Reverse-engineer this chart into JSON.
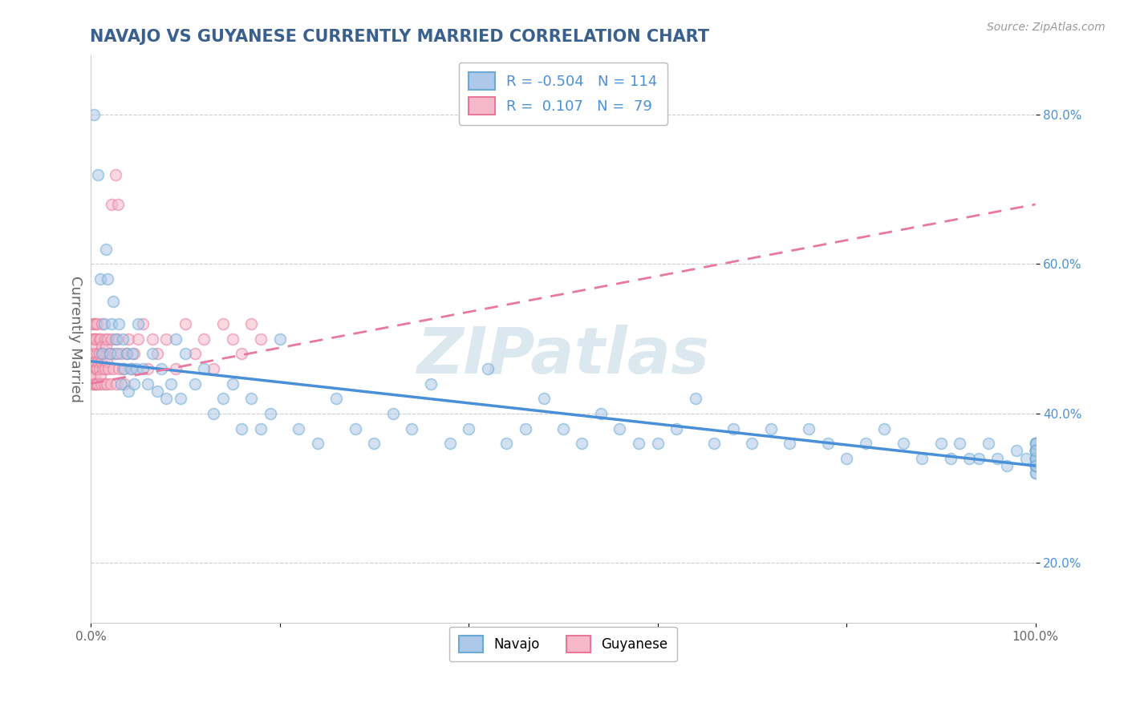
{
  "title": "NAVAJO VS GUYANESE CURRENTLY MARRIED CORRELATION CHART",
  "source_text": "Source: ZipAtlas.com",
  "ylabel": "Currently Married",
  "navajo_R": -0.504,
  "navajo_N": 114,
  "guyanese_R": 0.107,
  "guyanese_N": 79,
  "xlim": [
    0.0,
    1.0
  ],
  "ylim": [
    0.12,
    0.88
  ],
  "x_ticks": [
    0.0,
    0.2,
    0.4,
    0.6,
    0.8,
    1.0
  ],
  "x_tick_labels": [
    "0.0%",
    "",
    "",
    "",
    "",
    "100.0%"
  ],
  "y_ticks": [
    0.2,
    0.4,
    0.6,
    0.8
  ],
  "y_tick_labels": [
    "20.0%",
    "40.0%",
    "60.0%",
    "80.0%"
  ],
  "navajo_color": "#adc8e8",
  "guyanese_color": "#f5b8cb",
  "navajo_edge_color": "#6aaad4",
  "guyanese_edge_color": "#e8789a",
  "navajo_line_color": "#4a90d9",
  "guyanese_line_color": "#e878a0",
  "background_color": "#ffffff",
  "grid_color": "#cccccc",
  "title_color": "#3a6090",
  "source_color": "#999999",
  "legend_top_border": "#bbbbbb",
  "watermark_text": "ZIPatlas",
  "watermark_color": "#dce8f0",
  "marker_size": 100,
  "marker_alpha": 0.55,
  "marker_linewidth": 1.2,
  "navajo_x": [
    0.003,
    0.008,
    0.01,
    0.012,
    0.014,
    0.016,
    0.018,
    0.02,
    0.022,
    0.024,
    0.026,
    0.028,
    0.03,
    0.032,
    0.034,
    0.036,
    0.038,
    0.04,
    0.042,
    0.044,
    0.046,
    0.048,
    0.05,
    0.055,
    0.06,
    0.065,
    0.07,
    0.075,
    0.08,
    0.085,
    0.09,
    0.095,
    0.1,
    0.11,
    0.12,
    0.13,
    0.14,
    0.15,
    0.16,
    0.17,
    0.18,
    0.19,
    0.2,
    0.22,
    0.24,
    0.26,
    0.28,
    0.3,
    0.32,
    0.34,
    0.36,
    0.38,
    0.4,
    0.42,
    0.44,
    0.46,
    0.48,
    0.5,
    0.52,
    0.54,
    0.56,
    0.58,
    0.6,
    0.62,
    0.64,
    0.66,
    0.68,
    0.7,
    0.72,
    0.74,
    0.76,
    0.78,
    0.8,
    0.82,
    0.84,
    0.86,
    0.88,
    0.9,
    0.91,
    0.92,
    0.93,
    0.94,
    0.95,
    0.96,
    0.97,
    0.98,
    0.99,
    1.0,
    1.0,
    1.0,
    1.0,
    1.0,
    1.0,
    1.0,
    1.0,
    1.0,
    1.0,
    1.0,
    1.0,
    1.0,
    1.0,
    1.0,
    1.0,
    1.0,
    1.0,
    1.0,
    1.0,
    1.0,
    1.0,
    1.0,
    1.0,
    1.0,
    1.0,
    1.0
  ],
  "navajo_y": [
    0.8,
    0.72,
    0.58,
    0.48,
    0.52,
    0.62,
    0.58,
    0.48,
    0.52,
    0.55,
    0.5,
    0.48,
    0.52,
    0.44,
    0.5,
    0.46,
    0.48,
    0.43,
    0.46,
    0.48,
    0.44,
    0.46,
    0.52,
    0.46,
    0.44,
    0.48,
    0.43,
    0.46,
    0.42,
    0.44,
    0.5,
    0.42,
    0.48,
    0.44,
    0.46,
    0.4,
    0.42,
    0.44,
    0.38,
    0.42,
    0.38,
    0.4,
    0.5,
    0.38,
    0.36,
    0.42,
    0.38,
    0.36,
    0.4,
    0.38,
    0.44,
    0.36,
    0.38,
    0.46,
    0.36,
    0.38,
    0.42,
    0.38,
    0.36,
    0.4,
    0.38,
    0.36,
    0.36,
    0.38,
    0.42,
    0.36,
    0.38,
    0.36,
    0.38,
    0.36,
    0.38,
    0.36,
    0.34,
    0.36,
    0.38,
    0.36,
    0.34,
    0.36,
    0.34,
    0.36,
    0.34,
    0.34,
    0.36,
    0.34,
    0.33,
    0.35,
    0.34,
    0.36,
    0.33,
    0.35,
    0.34,
    0.33,
    0.35,
    0.36,
    0.35,
    0.34,
    0.33,
    0.35,
    0.34,
    0.32,
    0.33,
    0.35,
    0.34,
    0.36,
    0.33,
    0.35,
    0.32,
    0.34,
    0.33,
    0.35,
    0.34,
    0.36,
    0.33,
    0.35
  ],
  "guyanese_x": [
    0.001,
    0.001,
    0.001,
    0.002,
    0.002,
    0.002,
    0.002,
    0.003,
    0.003,
    0.003,
    0.003,
    0.004,
    0.004,
    0.004,
    0.005,
    0.005,
    0.005,
    0.005,
    0.006,
    0.006,
    0.006,
    0.007,
    0.007,
    0.007,
    0.008,
    0.008,
    0.009,
    0.009,
    0.009,
    0.01,
    0.01,
    0.011,
    0.011,
    0.012,
    0.012,
    0.013,
    0.013,
    0.014,
    0.015,
    0.015,
    0.016,
    0.017,
    0.017,
    0.018,
    0.019,
    0.02,
    0.021,
    0.022,
    0.022,
    0.024,
    0.025,
    0.026,
    0.027,
    0.028,
    0.029,
    0.03,
    0.032,
    0.034,
    0.036,
    0.038,
    0.04,
    0.043,
    0.046,
    0.05,
    0.055,
    0.06,
    0.065,
    0.07,
    0.08,
    0.09,
    0.1,
    0.11,
    0.12,
    0.13,
    0.14,
    0.15,
    0.16,
    0.17,
    0.18
  ],
  "guyanese_y": [
    0.48,
    0.5,
    0.45,
    0.52,
    0.46,
    0.48,
    0.44,
    0.5,
    0.47,
    0.52,
    0.44,
    0.48,
    0.45,
    0.5,
    0.47,
    0.52,
    0.44,
    0.49,
    0.46,
    0.5,
    0.44,
    0.48,
    0.46,
    0.52,
    0.47,
    0.44,
    0.5,
    0.46,
    0.48,
    0.45,
    0.5,
    0.47,
    0.44,
    0.49,
    0.52,
    0.46,
    0.48,
    0.44,
    0.5,
    0.46,
    0.49,
    0.47,
    0.44,
    0.5,
    0.46,
    0.48,
    0.44,
    0.5,
    0.68,
    0.46,
    0.48,
    0.72,
    0.44,
    0.5,
    0.68,
    0.46,
    0.48,
    0.46,
    0.44,
    0.48,
    0.5,
    0.46,
    0.48,
    0.5,
    0.52,
    0.46,
    0.5,
    0.48,
    0.5,
    0.46,
    0.52,
    0.48,
    0.5,
    0.46,
    0.52,
    0.5,
    0.48,
    0.52,
    0.5
  ],
  "navajo_trend_x": [
    0.0,
    1.0
  ],
  "navajo_trend_y": [
    0.47,
    0.33
  ],
  "guyanese_trend_x": [
    0.0,
    1.0
  ],
  "guyanese_trend_y": [
    0.44,
    0.68
  ]
}
